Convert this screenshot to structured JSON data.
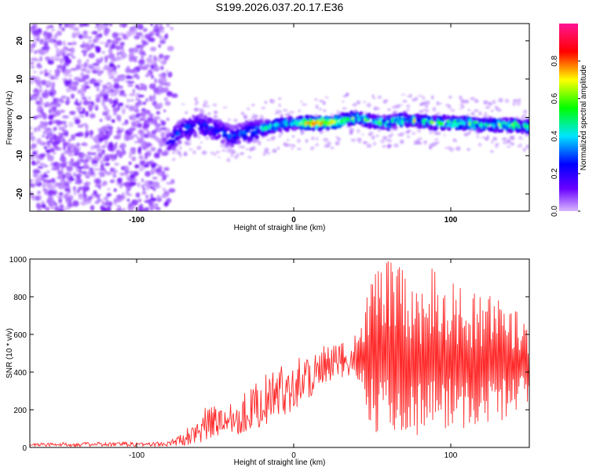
{
  "chart_data": [
    {
      "type": "heatmap",
      "title": "S199.2026.037.20.17.E36",
      "xlabel": "Height of straight line (km)",
      "ylabel": "Frequency (Hz)",
      "xlim": [
        -168,
        150
      ],
      "ylim": [
        -24.5,
        24.5
      ],
      "xticks": [
        -100,
        0,
        100
      ],
      "yticks": [
        20,
        10,
        0,
        -10,
        -20
      ],
      "colorbar": {
        "label": "Normalized spectral amplitude",
        "range": [
          0,
          1
        ],
        "ticks": [
          "0.0",
          "0.2",
          "0.4",
          "0.6",
          "0.8"
        ],
        "stops": [
          "#d9b8ff",
          "#6a00ff",
          "#0000ff",
          "#00ffff",
          "#00ff00",
          "#ffff00",
          "#ff0000",
          "#ff1493"
        ]
      },
      "ridge": {
        "description_free": true,
        "x": [
          -80,
          -70,
          -60,
          -50,
          -40,
          -30,
          -20,
          -10,
          0,
          10,
          20,
          30,
          40,
          50,
          60,
          70,
          80,
          90,
          100,
          110,
          120,
          130,
          140,
          145
        ],
        "y": [
          -7,
          -3,
          -2,
          -3,
          -5,
          -4,
          -3,
          -2,
          -1.5,
          -1.5,
          -1.5,
          -1,
          0,
          -1,
          -1.5,
          -0.5,
          -1,
          -1.5,
          -1.5,
          -1.5,
          -2,
          -2,
          -2,
          -2.5
        ]
      }
    },
    {
      "type": "line",
      "xlabel": "Height of straight line (km)",
      "ylabel": "SNR (10 * v/v)",
      "xlim": [
        -168,
        150
      ],
      "ylim": [
        0,
        1000
      ],
      "xticks": [
        -100,
        0,
        100
      ],
      "yticks": [
        0,
        200,
        400,
        600,
        800,
        1000
      ],
      "series": [
        {
          "name": "SNR",
          "color": "#ff2a2a",
          "envelope_x": [
            -168,
            -80,
            -70,
            -60,
            -50,
            -40,
            -30,
            -20,
            -10,
            0,
            10,
            20,
            30,
            40,
            50,
            60,
            70,
            80,
            90,
            100,
            110,
            120,
            130,
            140,
            150
          ],
          "envelope_low": [
            5,
            5,
            10,
            20,
            40,
            60,
            80,
            110,
            150,
            200,
            250,
            300,
            350,
            380,
            80,
            60,
            80,
            60,
            80,
            100,
            90,
            120,
            130,
            150,
            250
          ],
          "envelope_high": [
            25,
            30,
            80,
            200,
            230,
            260,
            300,
            380,
            420,
            480,
            520,
            540,
            560,
            600,
            1000,
            1000,
            950,
            900,
            980,
            900,
            850,
            800,
            820,
            800,
            700
          ]
        }
      ]
    }
  ]
}
